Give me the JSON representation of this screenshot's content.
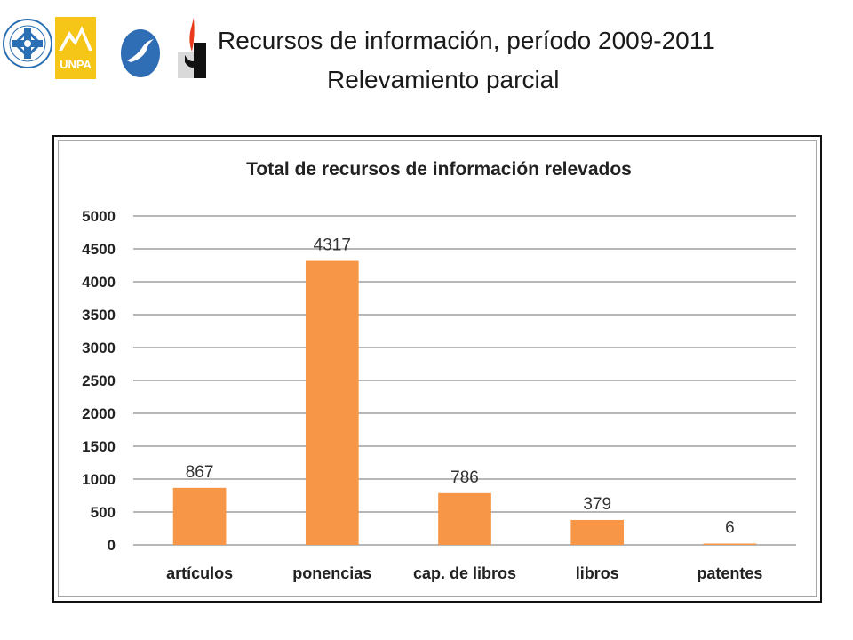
{
  "header": {
    "title_line1": "Recursos de información, período 2009-2011",
    "title_line2": "Relevamiento parcial",
    "logo_unpa_text": "UNPA",
    "logos": [
      "university-seal-icon",
      "unpa-mountain-logo",
      "bird-emblem-icon",
      "flame-emblem-icon"
    ]
  },
  "chart_data": {
    "type": "bar",
    "title": "Total de recursos de información relevados",
    "categories": [
      "artículos",
      "ponencias",
      "cap. de libros",
      "libros",
      "patentes"
    ],
    "values": [
      867,
      4317,
      786,
      379,
      6
    ],
    "data_labels": [
      "867",
      "4317",
      "786",
      "379",
      "6"
    ],
    "ylim": [
      0,
      5000
    ],
    "yticks": [
      0,
      500,
      1000,
      1500,
      2000,
      2500,
      3000,
      3500,
      4000,
      4500,
      5000
    ],
    "xlabel": "",
    "ylabel": "",
    "grid": true,
    "legend": "none",
    "bar_color": "#f79646",
    "grid_color": "#8c8c8c"
  }
}
